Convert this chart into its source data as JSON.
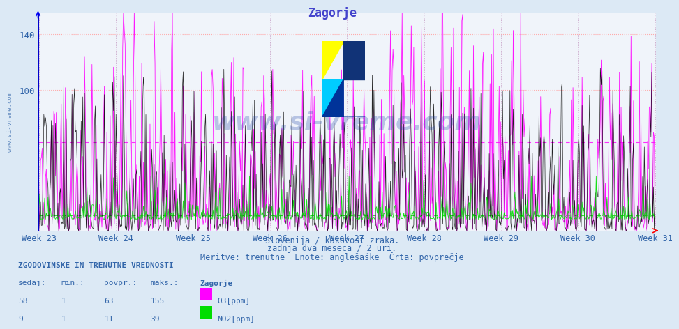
{
  "title": "Zagorje",
  "title_color": "#4444cc",
  "background_color": "#dce9f5",
  "plot_bg_color": "#ffffff",
  "ylim": [
    0,
    155
  ],
  "yticks": [
    100,
    140
  ],
  "weeks": [
    "Week 23",
    "Week 24",
    "Week 25",
    "Week 26",
    "Week 27",
    "Week 28",
    "Week 29",
    "Week 30",
    "Week 31"
  ],
  "grid_color_h": "#ffaaaa",
  "grid_color_v": "#ccaacc",
  "o3_color": "#ff00ff",
  "no2_color": "#00dd00",
  "so2_color": "#000000",
  "avg_o3": 63,
  "avg_no2": 11,
  "o3_sedaj": 58,
  "o3_min": 1,
  "o3_maks": 155,
  "no2_sedaj": 9,
  "no2_min": 1,
  "no2_maks": 39,
  "subtitle1": "Slovenija / kakovost zraka.",
  "subtitle2": "zadnja dva meseca / 2 uri.",
  "subtitle3": "Meritve: trenutne  Enote: anglešaške  Črta: povprečje",
  "watermark": "www.si-vreme.com",
  "watermark_color": "#2244aa",
  "n_points": 744
}
